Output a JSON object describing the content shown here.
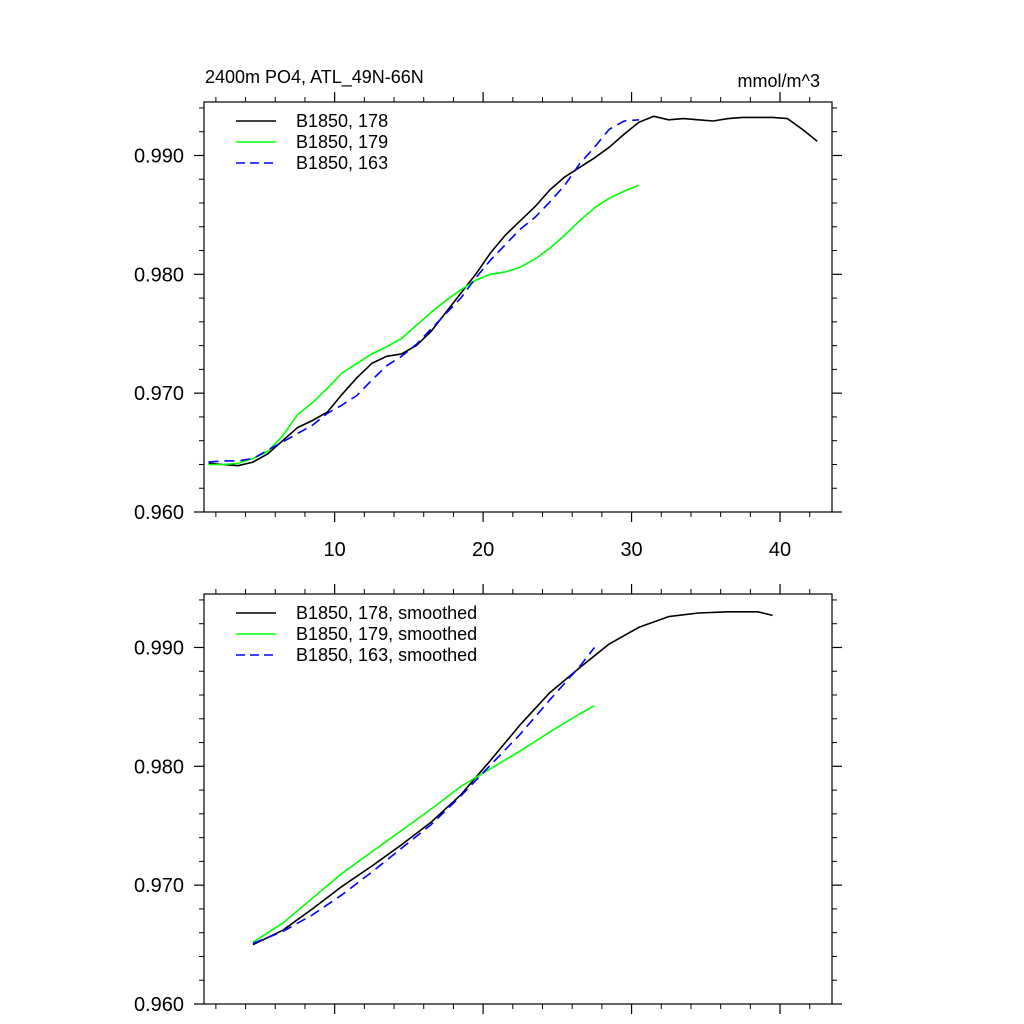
{
  "colors": {
    "series_178": "#000000",
    "series_179": "#00ff00",
    "series_163": "#0000ff"
  },
  "chart_data": [
    {
      "type": "line",
      "title": "2400m PO4, ATL_49N-66N",
      "units": "mmol/m^3",
      "xlim": [
        1.2,
        43.5
      ],
      "ylim": [
        0.96,
        0.9945
      ],
      "xticks": [
        10,
        20,
        30,
        40
      ],
      "xticklabels": [
        "10",
        "20",
        "30",
        "40"
      ],
      "yticks": [
        0.96,
        0.97,
        0.98,
        0.99
      ],
      "yticklabels": [
        "0.960",
        "0.970",
        "0.980",
        "0.990"
      ],
      "legend": [
        "B1850, 178",
        "B1850, 179",
        "B1850, 163"
      ],
      "series": [
        {
          "name": "B1850, 178",
          "style": "solid",
          "color_key": "series_178",
          "x": [
            1.5,
            2.5,
            3.5,
            4.5,
            5.5,
            6.5,
            7.5,
            8.5,
            9.5,
            10.5,
            11.5,
            12.5,
            13.5,
            14.5,
            15.5,
            16.5,
            17.5,
            18.5,
            19.5,
            20.5,
            21.5,
            22.5,
            23.5,
            24.5,
            25.5,
            26.5,
            27.5,
            28.5,
            29.5,
            30.5,
            31.5,
            32.5,
            33.5,
            34.5,
            35.5,
            36.5,
            37.5,
            38.5,
            39.5,
            40.5,
            41.5,
            42.5
          ],
          "values": [
            0.9641,
            0.964,
            0.9639,
            0.9642,
            0.9649,
            0.966,
            0.9671,
            0.9677,
            0.9684,
            0.9699,
            0.9713,
            0.9725,
            0.9731,
            0.9733,
            0.974,
            0.9752,
            0.9768,
            0.9784,
            0.98,
            0.9818,
            0.9833,
            0.9845,
            0.9857,
            0.9871,
            0.9882,
            0.989,
            0.9898,
            0.9907,
            0.9918,
            0.9928,
            0.9933,
            0.993,
            0.9931,
            0.993,
            0.9929,
            0.9931,
            0.9932,
            0.9932,
            0.9932,
            0.9931,
            0.9922,
            0.9912
          ]
        },
        {
          "name": "B1850, 179",
          "style": "solid",
          "color_key": "series_179",
          "x": [
            1.5,
            2.5,
            3.5,
            4.5,
            5.5,
            6.5,
            7.5,
            8.5,
            9.5,
            10.5,
            11.5,
            12.5,
            13.5,
            14.5,
            15.5,
            16.5,
            17.5,
            18.5,
            19.5,
            20.5,
            21.5,
            22.5,
            23.5,
            24.5,
            25.5,
            26.5,
            27.5,
            28.5,
            29.5,
            30.5
          ],
          "values": [
            0.964,
            0.964,
            0.9641,
            0.9645,
            0.9651,
            0.9664,
            0.9682,
            0.9692,
            0.9704,
            0.9717,
            0.9725,
            0.9733,
            0.9739,
            0.9746,
            0.9757,
            0.9768,
            0.9778,
            0.9787,
            0.9795,
            0.98,
            0.9802,
            0.9806,
            0.9813,
            0.9822,
            0.9833,
            0.9845,
            0.9856,
            0.9864,
            0.987,
            0.9875
          ]
        },
        {
          "name": "B1850, 163",
          "style": "dashed",
          "color_key": "series_163",
          "x": [
            1.5,
            2.5,
            3.5,
            4.5,
            5.5,
            6.5,
            7.5,
            8.5,
            9.5,
            10.5,
            11.5,
            12.5,
            13.5,
            14.5,
            15.5,
            16.5,
            17.5,
            18.5,
            19.5,
            20.5,
            21.5,
            22.5,
            23.5,
            24.5,
            25.5,
            26.5,
            27.5,
            28.5,
            29.5,
            30.5
          ],
          "values": [
            0.9642,
            0.9643,
            0.9643,
            0.9645,
            0.9652,
            0.9659,
            0.9666,
            0.9673,
            0.9683,
            0.969,
            0.9698,
            0.9711,
            0.9723,
            0.9731,
            0.9741,
            0.9754,
            0.9767,
            0.978,
            0.9797,
            0.9812,
            0.9825,
            0.9838,
            0.9848,
            0.9861,
            0.9875,
            0.9893,
            0.9907,
            0.9922,
            0.9929,
            0.993
          ]
        }
      ]
    },
    {
      "type": "line",
      "title": "",
      "units": "",
      "xlim": [
        1.2,
        43.5
      ],
      "ylim": [
        0.96,
        0.9945
      ],
      "xticks": [
        10,
        20,
        30,
        40
      ],
      "xticklabels": [],
      "yticks": [
        0.96,
        0.97,
        0.98,
        0.99
      ],
      "yticklabels": [
        "0.960",
        "0.970",
        "0.980",
        "0.990"
      ],
      "legend": [
        "B1850, 178, smoothed",
        "B1850, 179, smoothed",
        "B1850, 163, smoothed"
      ],
      "series": [
        {
          "name": "B1850, 178, smoothed",
          "style": "solid",
          "color_key": "series_178",
          "x": [
            4.5,
            6.5,
            8.5,
            10.5,
            12.5,
            14.5,
            16.5,
            18.5,
            20.5,
            22.5,
            24.5,
            26.5,
            28.5,
            30.5,
            32.5,
            34.5,
            36.5,
            38.5,
            39.5
          ],
          "values": [
            0.965,
            0.9662,
            0.968,
            0.9699,
            0.9716,
            0.9734,
            0.9753,
            0.9776,
            0.9805,
            0.9835,
            0.9862,
            0.9883,
            0.9903,
            0.9917,
            0.9926,
            0.9929,
            0.993,
            0.993,
            0.9927
          ]
        },
        {
          "name": "B1850, 179, smoothed",
          "style": "solid",
          "color_key": "series_179",
          "x": [
            4.5,
            6.5,
            8.5,
            10.5,
            12.5,
            14.5,
            16.5,
            18.5,
            20.5,
            22.5,
            24.5,
            26.5,
            27.5
          ],
          "values": [
            0.9652,
            0.9668,
            0.9689,
            0.971,
            0.9728,
            0.9746,
            0.9764,
            0.9783,
            0.9798,
            0.9813,
            0.9829,
            0.9844,
            0.9851
          ]
        },
        {
          "name": "B1850, 163, smoothed",
          "style": "dashed",
          "color_key": "series_163",
          "x": [
            4.5,
            6.5,
            8.5,
            10.5,
            12.5,
            14.5,
            16.5,
            18.5,
            20.5,
            22.5,
            24.5,
            26.5,
            27.5
          ],
          "values": [
            0.9651,
            0.9661,
            0.9675,
            0.9692,
            0.9711,
            0.9731,
            0.9751,
            0.9775,
            0.9801,
            0.9827,
            0.9856,
            0.9884,
            0.99
          ]
        }
      ]
    }
  ]
}
